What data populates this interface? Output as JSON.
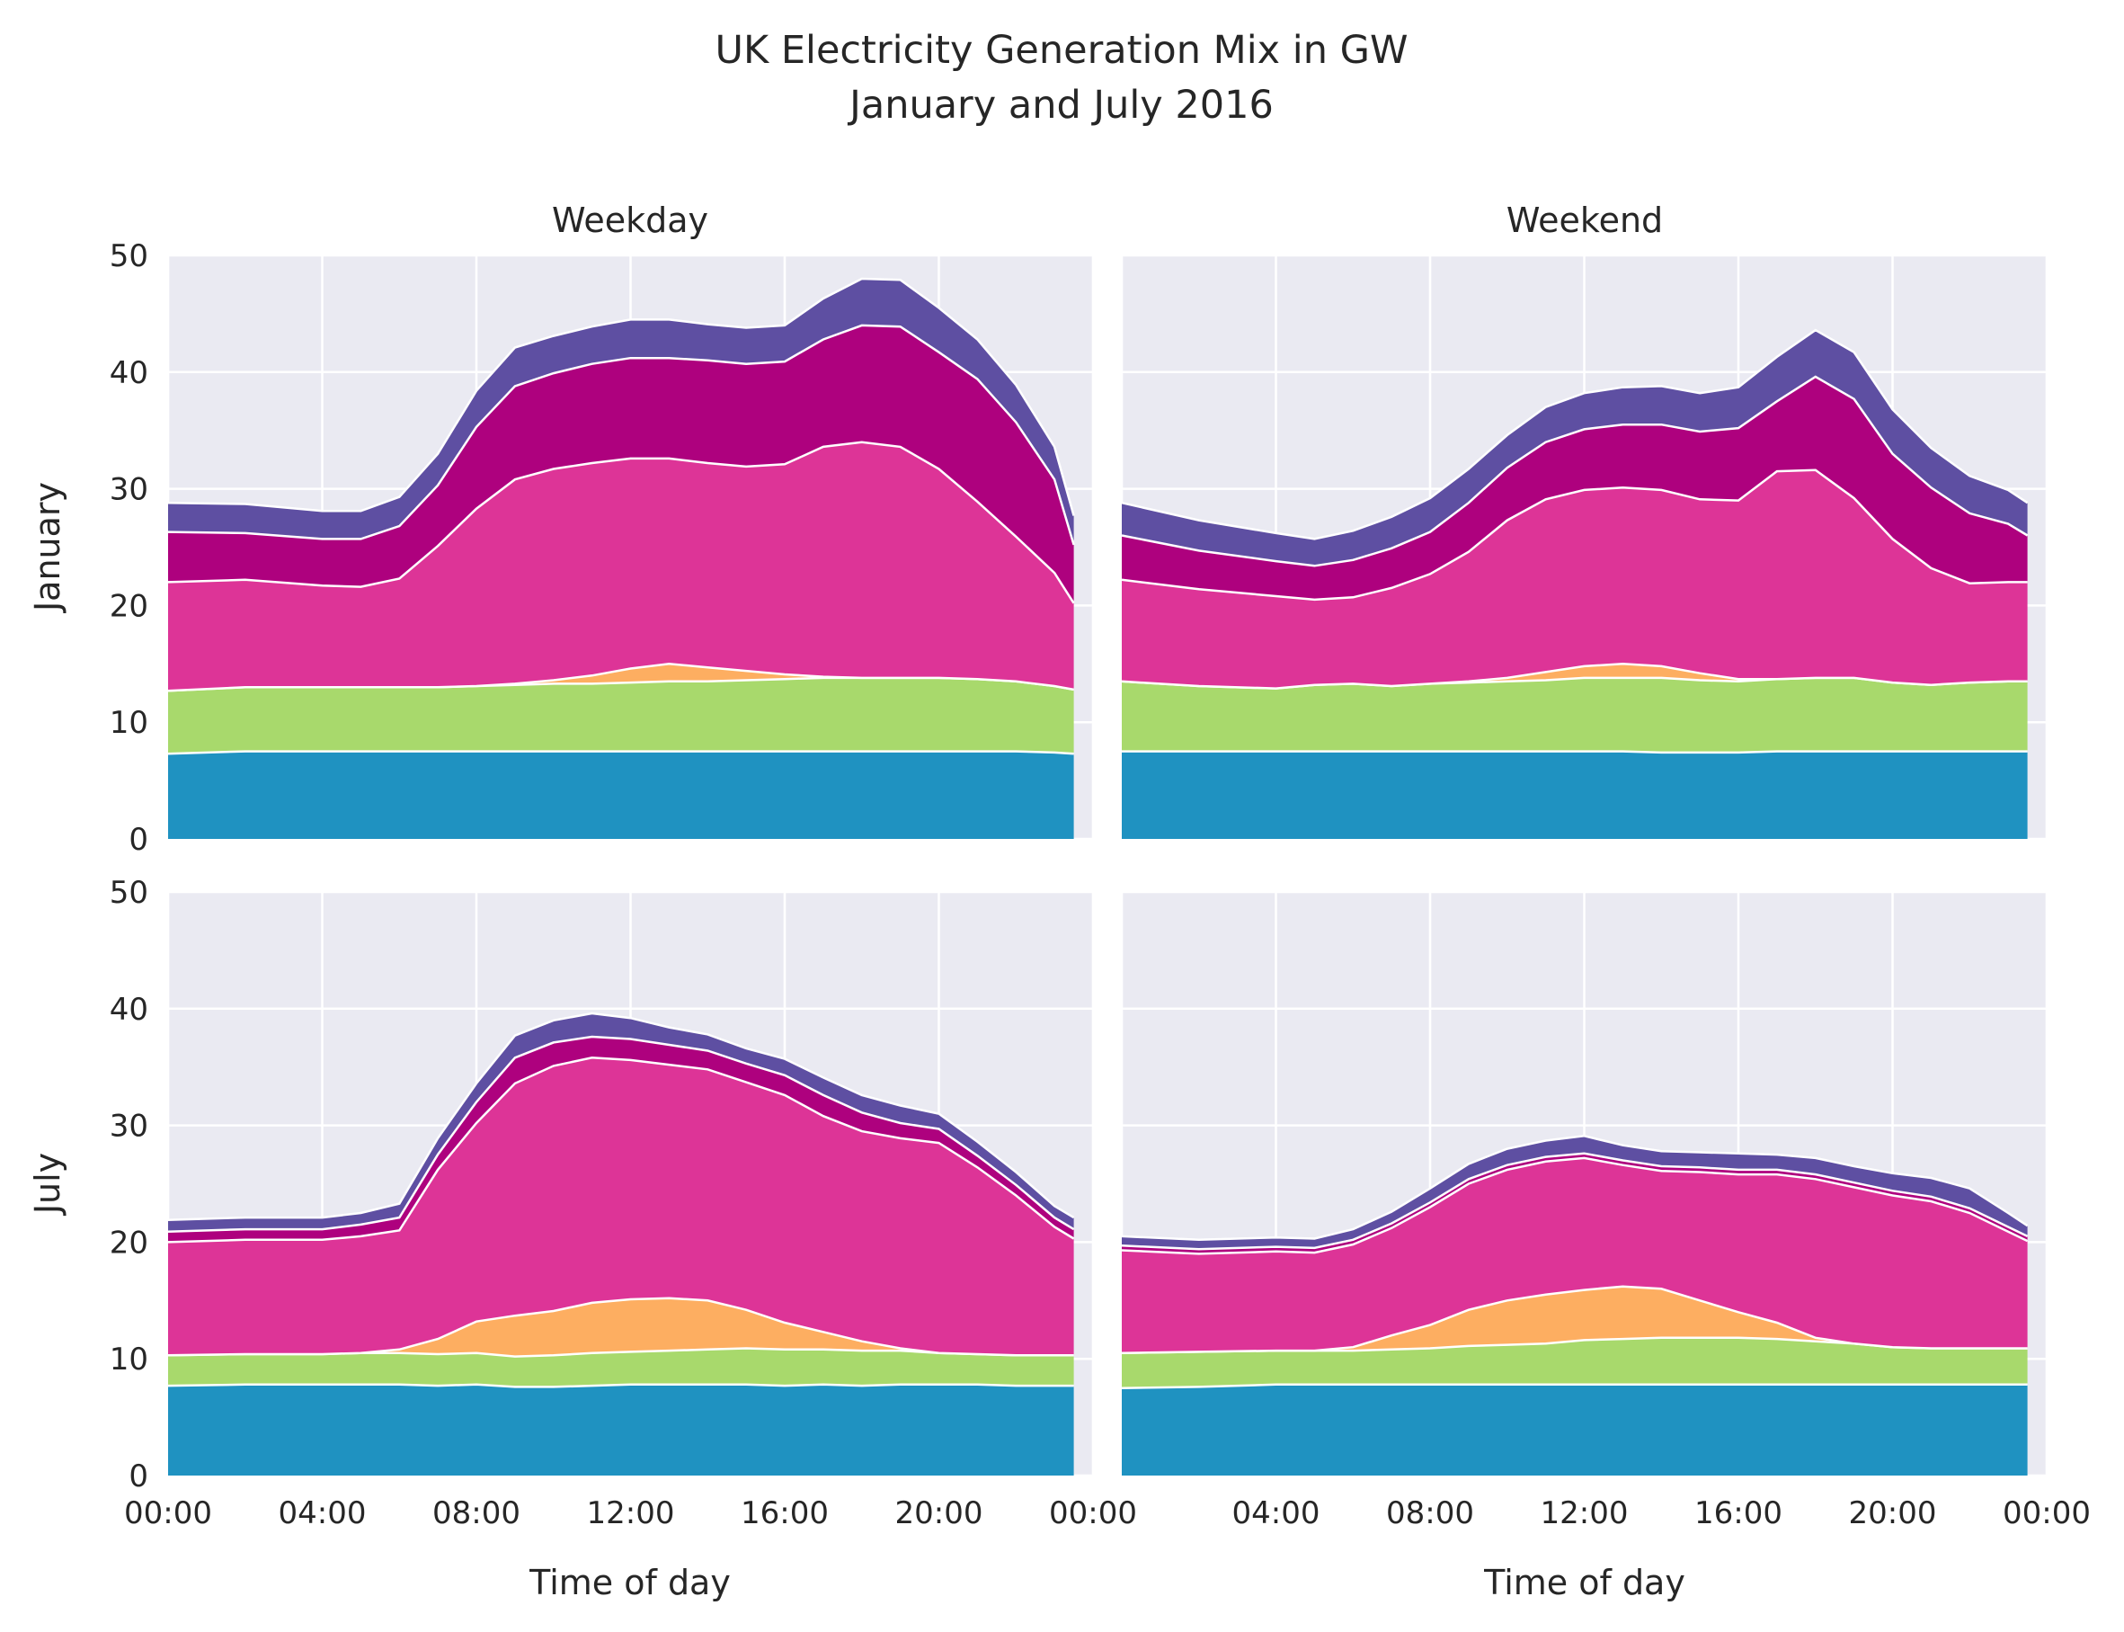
{
  "suptitle": [
    "UK Electricity Generation Mix in GW",
    "January and July 2016"
  ],
  "row_labels": [
    "January",
    "July"
  ],
  "col_titles": [
    "Weekday",
    "Weekend"
  ],
  "xlabel": "Time of day",
  "colors": {
    "background": "#eaeaf2",
    "grid": "#ffffff",
    "stack": [
      "#1f92c1",
      "#a8d96c",
      "#fdae61",
      "#dd3497",
      "#ae017e",
      "#5e4fa2"
    ]
  },
  "chart_data": {
    "type": "area",
    "stacked": true,
    "facet": "2x2",
    "x_unit": "hours",
    "x_ticks": [
      "00:00",
      "04:00",
      "08:00",
      "12:00",
      "16:00",
      "20:00",
      "00:00"
    ],
    "xlim": [
      0,
      24
    ],
    "ylim": [
      0,
      50
    ],
    "y_ticks": [
      0,
      10,
      20,
      30,
      40,
      50
    ],
    "grid": true,
    "legend": "none",
    "panels": [
      {
        "row": "January",
        "col": "Weekday",
        "x": [
          0,
          2,
          4,
          5,
          6,
          7,
          8,
          9,
          10,
          11,
          12,
          13,
          14,
          15,
          16,
          17,
          18,
          19,
          20,
          21,
          22,
          23,
          23.5
        ],
        "series": [
          {
            "values": [
              7.3,
              7.5,
              7.5,
              7.5,
              7.5,
              7.5,
              7.5,
              7.5,
              7.5,
              7.5,
              7.5,
              7.5,
              7.5,
              7.5,
              7.5,
              7.5,
              7.5,
              7.5,
              7.5,
              7.5,
              7.5,
              7.4,
              7.3
            ]
          },
          {
            "values": [
              5.4,
              5.5,
              5.5,
              5.5,
              5.5,
              5.5,
              5.6,
              5.7,
              5.8,
              5.8,
              5.9,
              6.0,
              6.0,
              6.1,
              6.2,
              6.3,
              6.3,
              6.3,
              6.3,
              6.2,
              6.0,
              5.7,
              5.5
            ]
          },
          {
            "values": [
              0,
              0,
              0,
              0,
              0,
              0,
              0,
              0.1,
              0.3,
              0.7,
              1.2,
              1.5,
              1.2,
              0.8,
              0.4,
              0.1,
              0,
              0,
              0,
              0,
              0,
              0,
              0
            ]
          },
          {
            "values": [
              9.3,
              9.2,
              8.7,
              8.6,
              9.3,
              12.1,
              15.2,
              17.5,
              18.1,
              18.2,
              18.0,
              17.6,
              17.5,
              17.5,
              18.0,
              19.7,
              20.2,
              19.8,
              17.9,
              15.2,
              12.4,
              9.7,
              7.4
            ]
          },
          {
            "values": [
              4.3,
              4.0,
              4.0,
              4.1,
              4.5,
              5.2,
              7.0,
              8.0,
              8.2,
              8.5,
              8.6,
              8.6,
              8.8,
              8.8,
              8.8,
              9.2,
              10.0,
              10.3,
              10.0,
              10.5,
              9.8,
              8.0,
              5.0
            ]
          },
          {
            "values": [
              2.5,
              2.5,
              2.4,
              2.4,
              2.5,
              2.7,
              3.1,
              3.3,
              3.2,
              3.2,
              3.3,
              3.3,
              3.1,
              3.1,
              3.1,
              3.5,
              4.0,
              4.0,
              3.8,
              3.4,
              3.2,
              2.8,
              2.5
            ]
          }
        ]
      },
      {
        "row": "January",
        "col": "Weekend",
        "x": [
          0,
          2,
          4,
          5,
          6,
          7,
          8,
          9,
          10,
          11,
          12,
          13,
          14,
          15,
          16,
          17,
          18,
          19,
          20,
          21,
          22,
          23,
          23.5
        ],
        "series": [
          {
            "values": [
              7.5,
              7.5,
              7.5,
              7.5,
              7.5,
              7.5,
              7.5,
              7.5,
              7.5,
              7.5,
              7.5,
              7.5,
              7.4,
              7.4,
              7.4,
              7.5,
              7.5,
              7.5,
              7.5,
              7.5,
              7.5,
              7.5,
              7.5
            ]
          },
          {
            "values": [
              6.0,
              5.6,
              5.4,
              5.7,
              5.8,
              5.6,
              5.8,
              5.9,
              6.0,
              6.1,
              6.3,
              6.3,
              6.4,
              6.2,
              6.1,
              6.2,
              6.3,
              6.3,
              5.9,
              5.7,
              5.9,
              6.0,
              6.0
            ]
          },
          {
            "values": [
              0,
              0,
              0,
              0,
              0,
              0,
              0,
              0.1,
              0.3,
              0.7,
              1.0,
              1.2,
              1.0,
              0.6,
              0.2,
              0,
              0,
              0,
              0,
              0,
              0,
              0,
              0
            ]
          },
          {
            "values": [
              8.7,
              8.3,
              7.9,
              7.3,
              7.4,
              8.4,
              9.4,
              11.1,
              13.5,
              14.8,
              15.1,
              15.1,
              15.1,
              14.9,
              15.3,
              17.8,
              17.8,
              15.4,
              12.3,
              10.0,
              8.5,
              8.5,
              8.5
            ]
          },
          {
            "values": [
              3.8,
              3.3,
              3.0,
              2.9,
              3.2,
              3.4,
              3.6,
              4.2,
              4.5,
              4.9,
              5.2,
              5.4,
              5.6,
              5.8,
              6.2,
              6.0,
              8.0,
              8.5,
              7.3,
              6.9,
              6.0,
              5.0,
              4.0
            ]
          },
          {
            "values": [
              2.8,
              2.6,
              2.4,
              2.3,
              2.5,
              2.7,
              2.9,
              2.9,
              2.8,
              3.0,
              3.1,
              3.2,
              3.3,
              3.3,
              3.5,
              3.8,
              4.0,
              4.0,
              3.8,
              3.4,
              3.2,
              2.9,
              2.8
            ]
          }
        ]
      },
      {
        "row": "July",
        "col": "Weekday",
        "x": [
          0,
          2,
          4,
          5,
          6,
          7,
          8,
          9,
          10,
          11,
          12,
          13,
          14,
          15,
          16,
          17,
          18,
          19,
          20,
          21,
          22,
          23,
          23.5
        ],
        "series": [
          {
            "values": [
              7.7,
              7.8,
              7.8,
              7.8,
              7.8,
              7.7,
              7.8,
              7.6,
              7.6,
              7.7,
              7.8,
              7.8,
              7.8,
              7.8,
              7.7,
              7.8,
              7.7,
              7.8,
              7.8,
              7.8,
              7.7,
              7.7,
              7.7
            ]
          },
          {
            "values": [
              2.6,
              2.6,
              2.6,
              2.7,
              2.7,
              2.7,
              2.7,
              2.6,
              2.7,
              2.8,
              2.8,
              2.9,
              3.0,
              3.1,
              3.1,
              3.0,
              3.0,
              2.9,
              2.7,
              2.6,
              2.6,
              2.6,
              2.6
            ]
          },
          {
            "values": [
              0,
              0,
              0,
              0,
              0.3,
              1.3,
              2.7,
              3.5,
              3.8,
              4.3,
              4.5,
              4.5,
              4.2,
              3.3,
              2.3,
              1.5,
              0.8,
              0.2,
              0,
              0,
              0,
              0,
              0
            ]
          },
          {
            "values": [
              9.7,
              9.8,
              9.8,
              10.0,
              10.2,
              14.5,
              17.0,
              19.9,
              21.0,
              21.0,
              20.5,
              20.0,
              19.8,
              19.5,
              19.5,
              18.5,
              18.0,
              18.0,
              18.0,
              16.0,
              13.7,
              11.0,
              10.0
            ]
          },
          {
            "values": [
              0.9,
              0.9,
              0.9,
              1.0,
              1.1,
              1.3,
              1.8,
              2.2,
              2.0,
              1.8,
              1.8,
              1.7,
              1.6,
              1.6,
              1.7,
              1.8,
              1.6,
              1.3,
              1.2,
              1.0,
              0.9,
              0.8,
              0.8
            ]
          },
          {
            "values": [
              1.0,
              1.0,
              1.0,
              1.0,
              1.2,
              1.4,
              1.6,
              1.9,
              1.9,
              2.0,
              1.8,
              1.5,
              1.4,
              1.3,
              1.4,
              1.5,
              1.5,
              1.5,
              1.3,
              1.2,
              1.1,
              1.0,
              1.0
            ]
          }
        ]
      },
      {
        "row": "July",
        "col": "Weekend",
        "x": [
          0,
          2,
          4,
          5,
          6,
          7,
          8,
          9,
          10,
          11,
          12,
          13,
          14,
          15,
          16,
          17,
          18,
          19,
          20,
          21,
          22,
          23,
          23.5
        ],
        "series": [
          {
            "values": [
              7.5,
              7.6,
              7.8,
              7.8,
              7.8,
              7.8,
              7.8,
              7.8,
              7.8,
              7.8,
              7.8,
              7.8,
              7.8,
              7.8,
              7.8,
              7.8,
              7.8,
              7.8,
              7.8,
              7.8,
              7.8,
              7.8,
              7.8
            ]
          },
          {
            "values": [
              3.0,
              3.0,
              2.9,
              2.9,
              2.9,
              3.0,
              3.1,
              3.3,
              3.4,
              3.5,
              3.8,
              3.9,
              4.0,
              4.0,
              4.0,
              3.9,
              3.7,
              3.5,
              3.2,
              3.1,
              3.1,
              3.1,
              3.1
            ]
          },
          {
            "values": [
              0,
              0,
              0,
              0,
              0.3,
              1.2,
              2.0,
              3.1,
              3.8,
              4.2,
              4.3,
              4.5,
              4.2,
              3.2,
              2.2,
              1.4,
              0.3,
              0,
              0,
              0,
              0,
              0,
              0
            ]
          },
          {
            "values": [
              8.8,
              8.4,
              8.5,
              8.4,
              8.8,
              9.2,
              10.1,
              10.8,
              11.2,
              11.4,
              11.3,
              10.4,
              10.1,
              11.0,
              11.8,
              12.7,
              13.6,
              13.4,
              13.0,
              12.6,
              11.6,
              10.0,
              9.2
            ]
          },
          {
            "values": [
              0.4,
              0.4,
              0.4,
              0.4,
              0.4,
              0.4,
              0.4,
              0.4,
              0.4,
              0.4,
              0.4,
              0.4,
              0.4,
              0.4,
              0.4,
              0.4,
              0.4,
              0.4,
              0.4,
              0.4,
              0.4,
              0.4,
              0.4
            ]
          },
          {
            "values": [
              0.8,
              0.8,
              0.8,
              0.8,
              0.9,
              1.0,
              1.2,
              1.3,
              1.4,
              1.4,
              1.5,
              1.3,
              1.3,
              1.3,
              1.4,
              1.3,
              1.4,
              1.4,
              1.5,
              1.6,
              1.7,
              1.2,
              0.9
            ]
          }
        ]
      }
    ]
  }
}
